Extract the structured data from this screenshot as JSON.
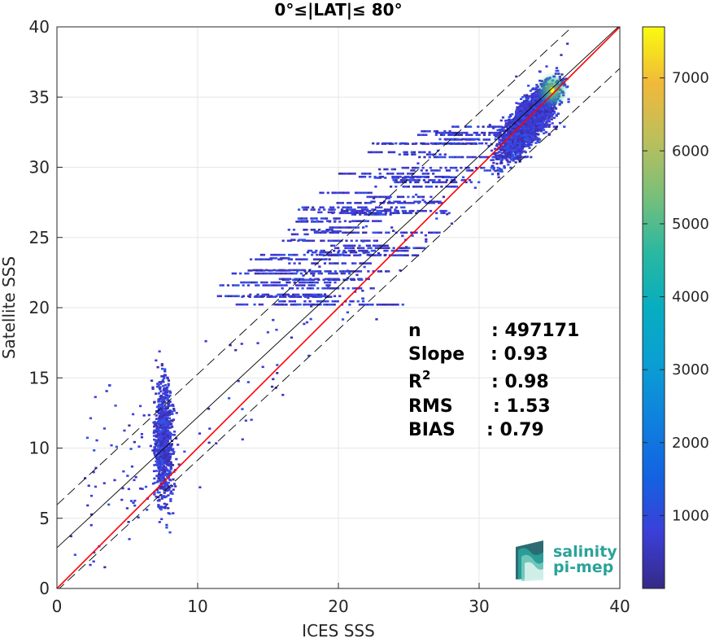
{
  "chart_data": {
    "type": "heatmap",
    "title": "0°≤|LAT|≤ 80°",
    "xlabel": "ICES SSS",
    "ylabel": "Satellite SSS",
    "xlim": [
      0,
      40
    ],
    "ylim": [
      0,
      40
    ],
    "xticks": [
      0,
      10,
      20,
      30,
      40
    ],
    "yticks": [
      0,
      5,
      10,
      15,
      20,
      25,
      30,
      35,
      40
    ],
    "grid": true,
    "colormap": "parula",
    "colorbar": {
      "range": [
        0,
        7700
      ],
      "ticks": [
        1000,
        2000,
        3000,
        4000,
        5000,
        6000,
        7000
      ]
    },
    "lines": [
      {
        "role": "identity",
        "color": "#ff0000",
        "x": [
          0,
          40
        ],
        "y": [
          0,
          40
        ]
      },
      {
        "role": "regression",
        "color": "#000000",
        "x": [
          0,
          40
        ],
        "y": [
          2.9,
          40.1
        ]
      },
      {
        "role": "regression-plus-2rms",
        "color": "#000000",
        "dash": true,
        "x": [
          0,
          40
        ],
        "y": [
          5.96,
          43.16
        ]
      },
      {
        "role": "regression-minus-2rms",
        "color": "#000000",
        "dash": true,
        "x": [
          0,
          40
        ],
        "y": [
          -0.16,
          37.04
        ]
      }
    ],
    "density_clusters": [
      {
        "x_center": 7.6,
        "y_center": 10.5,
        "x_spread": 0.45,
        "y_spread": 3.0,
        "x_range": [
          6.8,
          8.6
        ],
        "y_range": [
          3,
          20
        ]
      },
      {
        "x_center": 33.5,
        "y_center": 33.5,
        "x_spread": 1.4,
        "y_spread": 1.5,
        "x_range": [
          29.5,
          36.5
        ],
        "y_range": [
          28.5,
          38.5
        ]
      },
      {
        "x_center": 35.2,
        "y_center": 35.5,
        "peak": 7600
      }
    ],
    "stats": {
      "labels": [
        "n",
        "Slope",
        "R",
        "RMS",
        "BIAS"
      ],
      "r_superscript": "2",
      "values": [
        ": 497171",
        ": 0.93",
        ": 0.98",
        ": 1.53",
        ": 0.79"
      ]
    }
  },
  "logo": {
    "line1": "salinity",
    "line2": "pi-mep"
  }
}
